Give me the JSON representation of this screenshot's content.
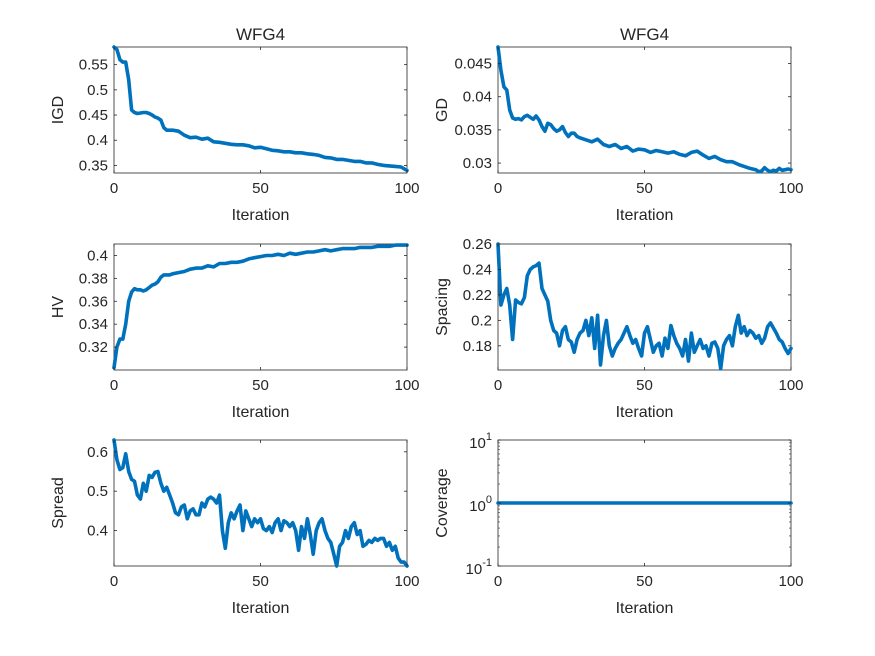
{
  "chart_data": [
    {
      "type": "line",
      "title": "WFG4",
      "xlabel": "Iteration",
      "ylabel": "IGD",
      "xlim": [
        0,
        100
      ],
      "ylim": [
        0.335,
        0.585
      ],
      "xticks": [
        0,
        50,
        100
      ],
      "yticks": [
        0.35,
        0.4,
        0.45,
        0.5,
        0.55
      ],
      "yticklabels": [
        "0.35",
        "0.4",
        "0.45",
        "0.5",
        "0.55"
      ],
      "color": "#0072BD",
      "x": [
        0,
        1,
        2,
        3,
        4,
        5,
        6,
        7,
        8,
        9,
        10,
        11,
        12,
        13,
        14,
        15,
        16,
        17,
        18,
        19,
        20,
        22,
        24,
        26,
        28,
        30,
        32,
        34,
        36,
        38,
        40,
        42,
        44,
        46,
        48,
        50,
        52,
        54,
        56,
        58,
        60,
        62,
        64,
        66,
        68,
        70,
        72,
        74,
        76,
        78,
        80,
        82,
        84,
        86,
        88,
        90,
        92,
        94,
        96,
        98,
        100
      ],
      "y": [
        0.585,
        0.58,
        0.56,
        0.555,
        0.555,
        0.52,
        0.46,
        0.455,
        0.453,
        0.454,
        0.455,
        0.455,
        0.453,
        0.45,
        0.446,
        0.444,
        0.44,
        0.425,
        0.42,
        0.42,
        0.42,
        0.418,
        0.41,
        0.405,
        0.406,
        0.402,
        0.404,
        0.397,
        0.396,
        0.394,
        0.392,
        0.391,
        0.391,
        0.389,
        0.385,
        0.386,
        0.383,
        0.38,
        0.379,
        0.377,
        0.377,
        0.375,
        0.375,
        0.373,
        0.372,
        0.37,
        0.366,
        0.365,
        0.362,
        0.362,
        0.36,
        0.358,
        0.358,
        0.355,
        0.355,
        0.352,
        0.35,
        0.349,
        0.348,
        0.347,
        0.34
      ]
    },
    {
      "type": "line",
      "title": "WFG4",
      "xlabel": "Iteration",
      "ylabel": "GD",
      "xlim": [
        0,
        100
      ],
      "ylim": [
        0.0285,
        0.0475
      ],
      "xticks": [
        0,
        50,
        100
      ],
      "yticks": [
        0.03,
        0.035,
        0.04,
        0.045
      ],
      "yticklabels": [
        "0.03",
        "0.035",
        "0.04",
        "0.045"
      ],
      "color": "#0072BD",
      "x": [
        0,
        1,
        2,
        3,
        4,
        5,
        6,
        7,
        8,
        9,
        10,
        11,
        12,
        13,
        14,
        15,
        16,
        17,
        18,
        19,
        20,
        21,
        22,
        23,
        24,
        25,
        26,
        27,
        28,
        30,
        32,
        34,
        36,
        38,
        40,
        42,
        44,
        46,
        48,
        50,
        52,
        54,
        56,
        58,
        60,
        62,
        64,
        66,
        68,
        70,
        72,
        74,
        76,
        78,
        80,
        82,
        84,
        86,
        88,
        89,
        90,
        91,
        92,
        93,
        94,
        95,
        96,
        97,
        98,
        99,
        100
      ],
      "y": [
        0.0475,
        0.044,
        0.0415,
        0.041,
        0.038,
        0.0368,
        0.0366,
        0.0367,
        0.0365,
        0.037,
        0.0372,
        0.0369,
        0.0366,
        0.0371,
        0.0365,
        0.0355,
        0.0348,
        0.036,
        0.0358,
        0.0352,
        0.0348,
        0.035,
        0.0355,
        0.0346,
        0.034,
        0.0345,
        0.0345,
        0.034,
        0.0338,
        0.0335,
        0.0332,
        0.0336,
        0.0328,
        0.0325,
        0.0328,
        0.0322,
        0.0325,
        0.0318,
        0.0321,
        0.032,
        0.0316,
        0.0319,
        0.0317,
        0.0315,
        0.0317,
        0.0313,
        0.0311,
        0.0316,
        0.0318,
        0.0312,
        0.0307,
        0.031,
        0.0305,
        0.0302,
        0.0302,
        0.0298,
        0.0295,
        0.0292,
        0.029,
        0.0287,
        0.0288,
        0.0293,
        0.0289,
        0.0287,
        0.0289,
        0.0288,
        0.0292,
        0.0289,
        0.029,
        0.0291,
        0.029
      ]
    },
    {
      "type": "line",
      "title": "",
      "xlabel": "Iteration",
      "ylabel": "HV",
      "xlim": [
        0,
        100
      ],
      "ylim": [
        0.3,
        0.41
      ],
      "xticks": [
        0,
        50,
        100
      ],
      "yticks": [
        0.32,
        0.34,
        0.36,
        0.38,
        0.4
      ],
      "yticklabels": [
        "0.32",
        "0.34",
        "0.36",
        "0.38",
        "0.4"
      ],
      "color": "#0072BD",
      "x": [
        0,
        1,
        2,
        3,
        4,
        5,
        6,
        7,
        8,
        9,
        10,
        11,
        12,
        13,
        14,
        15,
        16,
        17,
        18,
        19,
        20,
        22,
        24,
        26,
        28,
        30,
        32,
        34,
        36,
        38,
        40,
        42,
        44,
        46,
        48,
        50,
        52,
        54,
        56,
        58,
        60,
        62,
        64,
        66,
        68,
        70,
        72,
        74,
        76,
        78,
        80,
        82,
        84,
        86,
        88,
        90,
        92,
        94,
        96,
        98,
        100
      ],
      "y": [
        0.302,
        0.32,
        0.327,
        0.327,
        0.34,
        0.36,
        0.368,
        0.371,
        0.37,
        0.37,
        0.369,
        0.37,
        0.372,
        0.374,
        0.375,
        0.377,
        0.381,
        0.383,
        0.383,
        0.383,
        0.384,
        0.385,
        0.386,
        0.388,
        0.389,
        0.389,
        0.391,
        0.39,
        0.393,
        0.393,
        0.394,
        0.394,
        0.395,
        0.397,
        0.398,
        0.399,
        0.4,
        0.4,
        0.401,
        0.4,
        0.402,
        0.401,
        0.402,
        0.403,
        0.403,
        0.404,
        0.405,
        0.404,
        0.405,
        0.406,
        0.406,
        0.406,
        0.407,
        0.407,
        0.407,
        0.408,
        0.408,
        0.408,
        0.409,
        0.409,
        0.409
      ]
    },
    {
      "type": "line",
      "title": "",
      "xlabel": "Iteration",
      "ylabel": "Spacing",
      "xlim": [
        0,
        100
      ],
      "ylim": [
        0.161,
        0.26
      ],
      "xticks": [
        0,
        50,
        100
      ],
      "yticks": [
        0.18,
        0.2,
        0.22,
        0.24,
        0.26
      ],
      "yticklabels": [
        "0.18",
        "0.2",
        "0.22",
        "0.24",
        "0.26"
      ],
      "color": "#0072BD",
      "x": [
        0,
        1,
        2,
        3,
        4,
        5,
        6,
        7,
        8,
        9,
        10,
        11,
        12,
        13,
        14,
        15,
        16,
        17,
        18,
        19,
        20,
        21,
        22,
        23,
        24,
        25,
        26,
        27,
        28,
        29,
        30,
        31,
        32,
        33,
        34,
        35,
        36,
        37,
        38,
        39,
        40,
        41,
        42,
        43,
        44,
        45,
        46,
        47,
        48,
        49,
        50,
        51,
        52,
        53,
        54,
        55,
        56,
        57,
        58,
        59,
        60,
        61,
        62,
        63,
        64,
        65,
        66,
        67,
        68,
        69,
        70,
        71,
        72,
        73,
        74,
        75,
        76,
        77,
        78,
        79,
        80,
        81,
        82,
        83,
        84,
        85,
        86,
        87,
        88,
        89,
        90,
        91,
        92,
        93,
        94,
        95,
        96,
        97,
        98,
        99,
        100
      ],
      "y": [
        0.26,
        0.212,
        0.22,
        0.225,
        0.212,
        0.185,
        0.216,
        0.214,
        0.213,
        0.218,
        0.235,
        0.24,
        0.242,
        0.243,
        0.245,
        0.225,
        0.22,
        0.215,
        0.2,
        0.192,
        0.19,
        0.18,
        0.192,
        0.195,
        0.185,
        0.183,
        0.175,
        0.185,
        0.19,
        0.192,
        0.2,
        0.188,
        0.202,
        0.178,
        0.204,
        0.165,
        0.188,
        0.2,
        0.18,
        0.172,
        0.178,
        0.182,
        0.185,
        0.19,
        0.195,
        0.188,
        0.182,
        0.185,
        0.178,
        0.172,
        0.19,
        0.195,
        0.185,
        0.175,
        0.18,
        0.182,
        0.172,
        0.186,
        0.178,
        0.196,
        0.188,
        0.182,
        0.178,
        0.172,
        0.185,
        0.168,
        0.19,
        0.175,
        0.18,
        0.185,
        0.178,
        0.18,
        0.172,
        0.182,
        0.183,
        0.178,
        0.162,
        0.18,
        0.185,
        0.188,
        0.18,
        0.195,
        0.204,
        0.19,
        0.195,
        0.188,
        0.192,
        0.19,
        0.186,
        0.188,
        0.182,
        0.186,
        0.195,
        0.198,
        0.194,
        0.19,
        0.185,
        0.183,
        0.178,
        0.174,
        0.178
      ]
    },
    {
      "type": "line",
      "title": "",
      "xlabel": "Iteration",
      "ylabel": "Spread",
      "xlim": [
        0,
        100
      ],
      "ylim": [
        0.31,
        0.63
      ],
      "xticks": [
        0,
        50,
        100
      ],
      "yticks": [
        0.4,
        0.5,
        0.6
      ],
      "yticklabels": [
        "0.4",
        "0.5",
        "0.6"
      ],
      "color": "#0072BD",
      "x": [
        0,
        1,
        2,
        3,
        4,
        5,
        6,
        7,
        8,
        9,
        10,
        11,
        12,
        13,
        14,
        15,
        16,
        17,
        18,
        19,
        20,
        21,
        22,
        23,
        24,
        25,
        26,
        27,
        28,
        29,
        30,
        31,
        32,
        33,
        34,
        35,
        36,
        37,
        38,
        39,
        40,
        41,
        42,
        43,
        44,
        45,
        46,
        47,
        48,
        49,
        50,
        51,
        52,
        53,
        54,
        55,
        56,
        57,
        58,
        59,
        60,
        61,
        62,
        63,
        64,
        65,
        66,
        67,
        68,
        69,
        70,
        71,
        72,
        73,
        74,
        75,
        76,
        77,
        78,
        79,
        80,
        81,
        82,
        83,
        84,
        85,
        86,
        87,
        88,
        89,
        90,
        91,
        92,
        93,
        94,
        95,
        96,
        97,
        98,
        99,
        100
      ],
      "y": [
        0.63,
        0.58,
        0.555,
        0.56,
        0.595,
        0.55,
        0.53,
        0.525,
        0.49,
        0.48,
        0.52,
        0.5,
        0.54,
        0.535,
        0.548,
        0.55,
        0.52,
        0.5,
        0.51,
        0.49,
        0.47,
        0.445,
        0.44,
        0.46,
        0.465,
        0.43,
        0.45,
        0.455,
        0.44,
        0.44,
        0.47,
        0.46,
        0.48,
        0.485,
        0.48,
        0.47,
        0.49,
        0.4,
        0.355,
        0.42,
        0.445,
        0.43,
        0.45,
        0.465,
        0.4,
        0.45,
        0.43,
        0.41,
        0.43,
        0.42,
        0.43,
        0.405,
        0.4,
        0.41,
        0.395,
        0.42,
        0.43,
        0.4,
        0.425,
        0.42,
        0.41,
        0.42,
        0.4,
        0.35,
        0.41,
        0.38,
        0.43,
        0.39,
        0.34,
        0.4,
        0.42,
        0.43,
        0.4,
        0.38,
        0.37,
        0.34,
        0.31,
        0.36,
        0.37,
        0.4,
        0.38,
        0.41,
        0.42,
        0.39,
        0.4,
        0.36,
        0.365,
        0.375,
        0.37,
        0.38,
        0.375,
        0.38,
        0.38,
        0.36,
        0.37,
        0.35,
        0.36,
        0.33,
        0.32,
        0.32,
        0.31
      ]
    },
    {
      "type": "line",
      "title": "",
      "xlabel": "Iteration",
      "ylabel": "Coverage",
      "yscale": "log",
      "xlim": [
        0,
        100
      ],
      "ylim": [
        0.1,
        10
      ],
      "xticks": [
        0,
        50,
        100
      ],
      "yticks": [
        0.1,
        1,
        10
      ],
      "yticklabels": [
        [
          "10",
          "-1"
        ],
        [
          "10",
          "0"
        ],
        [
          "10",
          "1"
        ]
      ],
      "color": "#0072BD",
      "x": [
        0,
        100
      ],
      "y": [
        1,
        1
      ]
    }
  ]
}
